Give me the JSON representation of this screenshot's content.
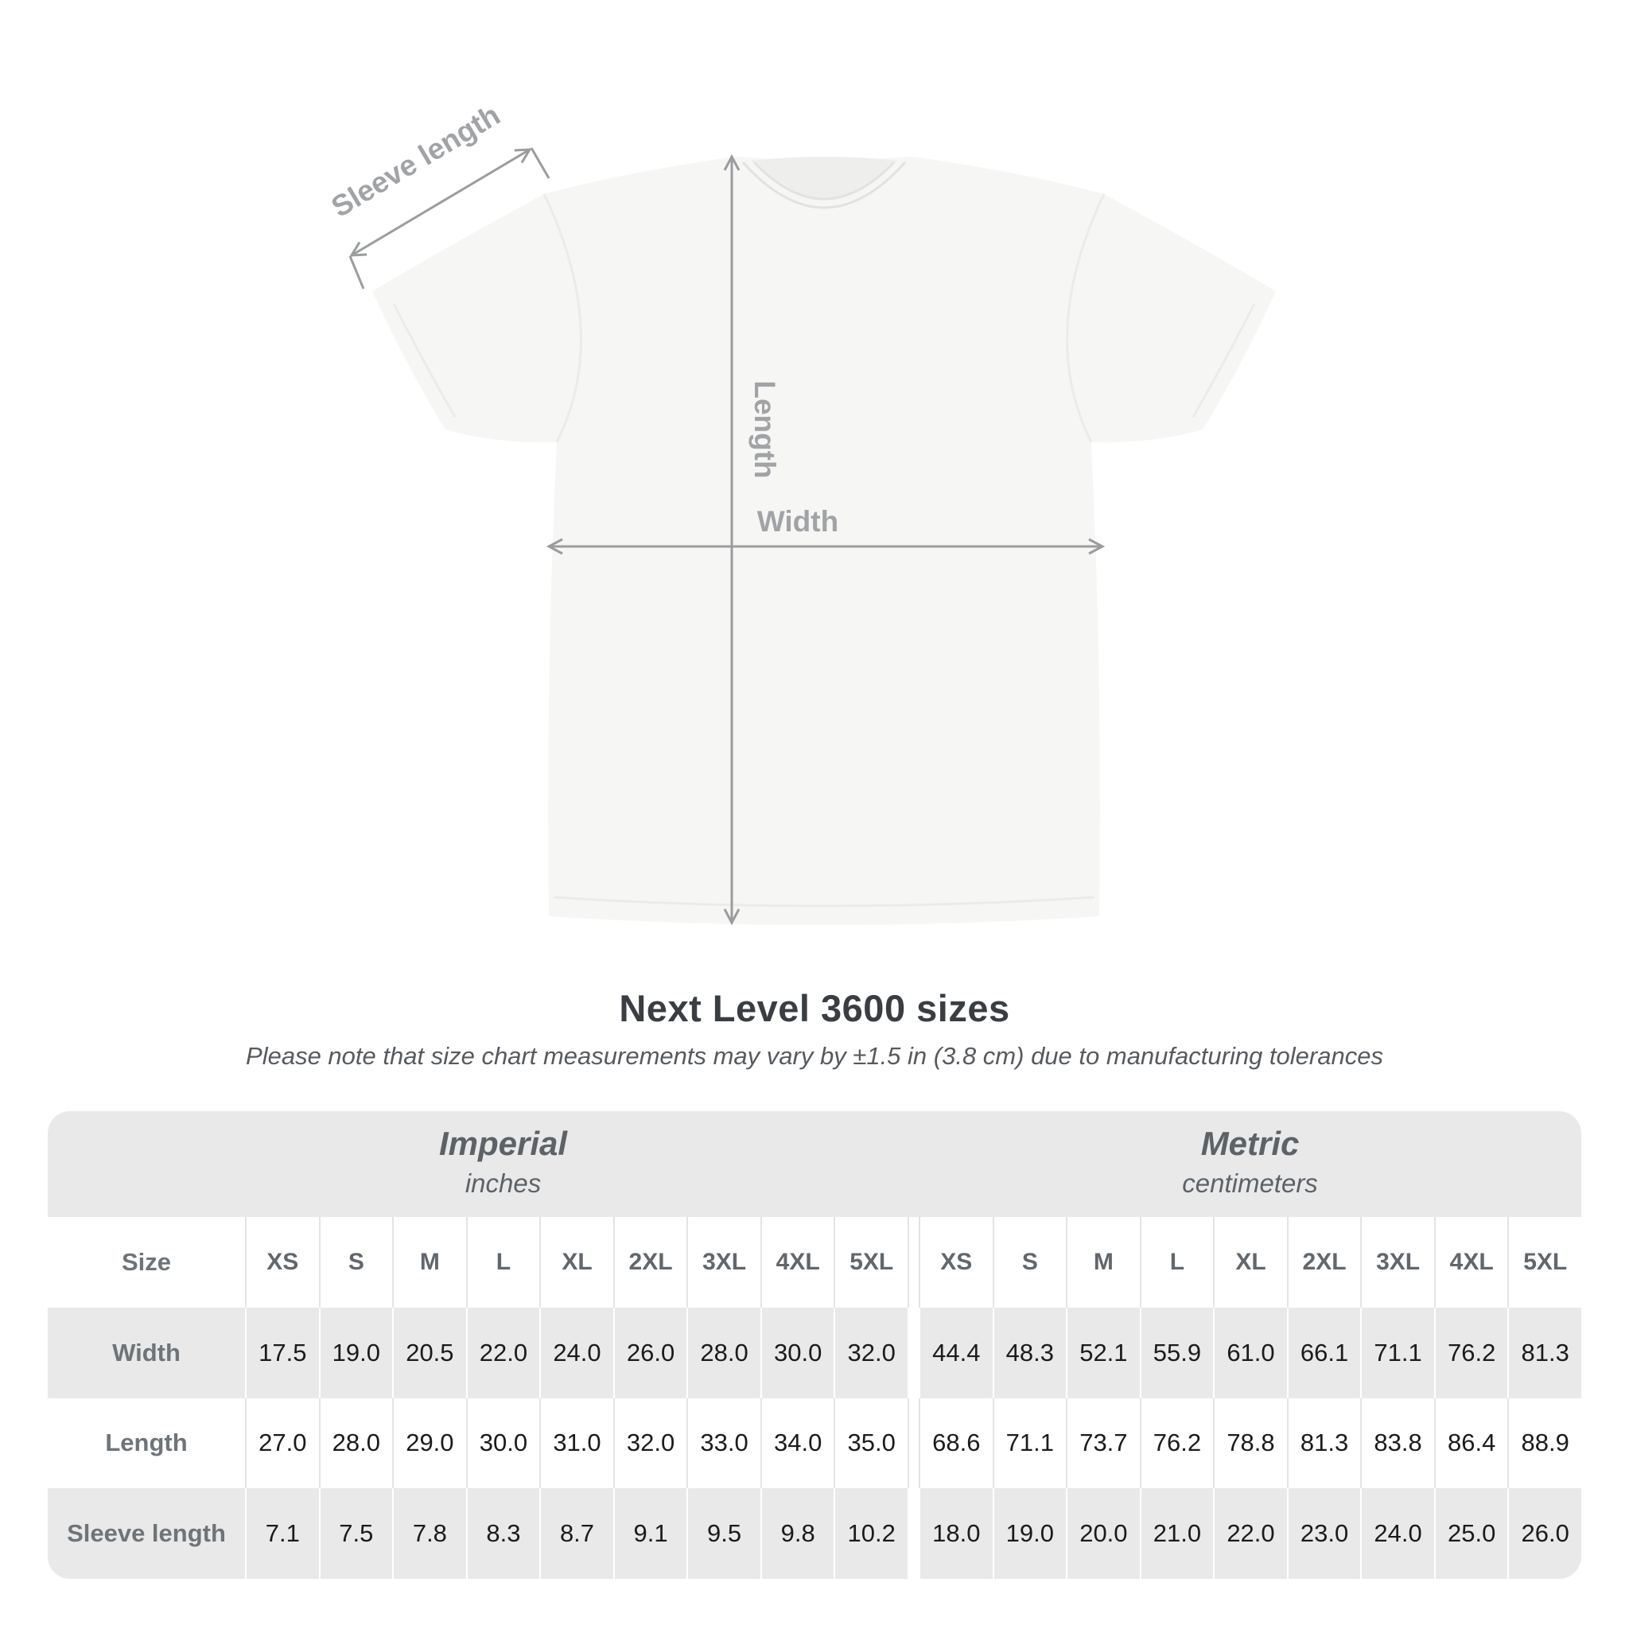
{
  "figure": {
    "labels": {
      "sleeve": "Sleeve length",
      "length": "Length",
      "width": "Width"
    }
  },
  "title": "Next Level 3600 sizes",
  "subtitle": "Please note that size chart measurements may vary by ±1.5 in (3.8 cm) due to manufacturing tolerances",
  "table": {
    "unit_groups": [
      {
        "label": "Imperial",
        "sublabel": "inches"
      },
      {
        "label": "Metric",
        "sublabel": "centimeters"
      }
    ],
    "size_header_label": "Size",
    "sizes": [
      "XS",
      "S",
      "M",
      "L",
      "XL",
      "2XL",
      "3XL",
      "4XL",
      "5XL"
    ],
    "rows": [
      {
        "label": "Width",
        "imperial": [
          "17.5",
          "19.0",
          "20.5",
          "22.0",
          "24.0",
          "26.0",
          "28.0",
          "30.0",
          "32.0"
        ],
        "metric": [
          "44.4",
          "48.3",
          "52.1",
          "55.9",
          "61.0",
          "66.1",
          "71.1",
          "76.2",
          "81.3"
        ]
      },
      {
        "label": "Length",
        "imperial": [
          "27.0",
          "28.0",
          "29.0",
          "30.0",
          "31.0",
          "32.0",
          "33.0",
          "34.0",
          "35.0"
        ],
        "metric": [
          "68.6",
          "71.1",
          "73.7",
          "76.2",
          "78.8",
          "81.3",
          "83.8",
          "86.4",
          "88.9"
        ]
      },
      {
        "label": "Sleeve length",
        "imperial": [
          "7.1",
          "7.5",
          "7.8",
          "8.3",
          "8.7",
          "9.1",
          "9.5",
          "9.8",
          "10.2"
        ],
        "metric": [
          "18.0",
          "19.0",
          "20.0",
          "21.0",
          "22.0",
          "23.0",
          "24.0",
          "25.0",
          "26.0"
        ]
      }
    ]
  },
  "chart_data": {
    "type": "table",
    "title": "Next Level 3600 sizes",
    "columns": [
      "XS",
      "S",
      "M",
      "L",
      "XL",
      "2XL",
      "3XL",
      "4XL",
      "5XL"
    ],
    "series": [
      {
        "name": "Width (inches)",
        "values": [
          17.5,
          19.0,
          20.5,
          22.0,
          24.0,
          26.0,
          28.0,
          30.0,
          32.0
        ]
      },
      {
        "name": "Length (inches)",
        "values": [
          27.0,
          28.0,
          29.0,
          30.0,
          31.0,
          32.0,
          33.0,
          34.0,
          35.0
        ]
      },
      {
        "name": "Sleeve length (inches)",
        "values": [
          7.1,
          7.5,
          7.8,
          8.3,
          8.7,
          9.1,
          9.5,
          9.8,
          10.2
        ]
      },
      {
        "name": "Width (cm)",
        "values": [
          44.4,
          48.3,
          52.1,
          55.9,
          61.0,
          66.1,
          71.1,
          76.2,
          81.3
        ]
      },
      {
        "name": "Length (cm)",
        "values": [
          68.6,
          71.1,
          73.7,
          76.2,
          78.8,
          81.3,
          83.8,
          86.4,
          88.9
        ]
      },
      {
        "name": "Sleeve length (cm)",
        "values": [
          18.0,
          19.0,
          20.0,
          21.0,
          22.0,
          23.0,
          24.0,
          25.0,
          26.0
        ]
      }
    ]
  },
  "colors": {
    "table_gray": "#e9e9e9",
    "value_text": "#1a1b1d",
    "row_label_text": "#6e7478",
    "title_text": "#3a3e43",
    "figure_gray": "#9b9c9e"
  }
}
